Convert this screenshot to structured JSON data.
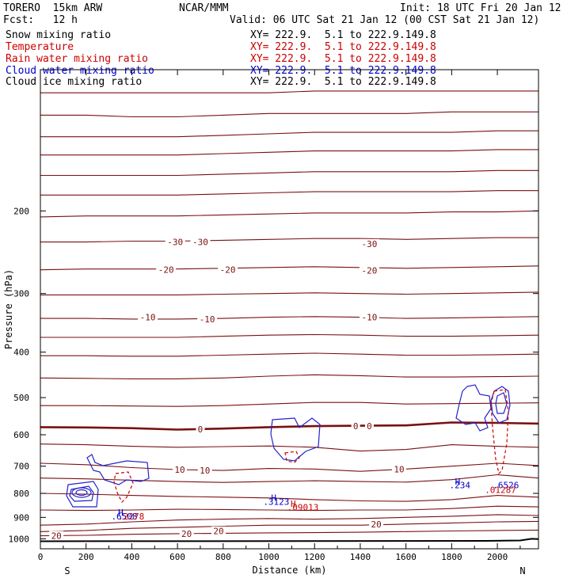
{
  "header": {
    "model": "TORERO  15km ARW",
    "center": "NCAR/MMM",
    "init": "Init: 18 UTC Fri 20 Jan 12",
    "fcst": "Fcst:   12 h",
    "valid": "Valid: 06 UTC Sat 21 Jan 12 (00 CST Sat 21 Jan 12)",
    "fields": [
      {
        "label": "Snow mixing ratio",
        "xy": "XY= 222.9.  5.1 to 222.9.149.8",
        "color": "#000000"
      },
      {
        "label": "Temperature",
        "xy": "XY= 222.9.  5.1 to 222.9.149.8",
        "color": "#cc0000"
      },
      {
        "label": "Rain water mixing ratio",
        "xy": "XY= 222.9.  5.1 to 222.9.149.8",
        "color": "#cc0000"
      },
      {
        "label": "Cloud water mixing ratio",
        "xy": "XY= 222.9.  5.1 to 222.9.149.8",
        "color": "#0000cc"
      },
      {
        "label": "Cloud ice mixing ratio",
        "xy": "XY= 222.9.  5.1 to 222.9.149.8",
        "color": "#000000"
      }
    ]
  },
  "chart_data": {
    "type": "contour-cross-section",
    "xlabel": "Distance (km)",
    "ylabel": "Pressure (hPa)",
    "xlim": [
      0,
      2180
    ],
    "ylim": [
      1050,
      100
    ],
    "x_ticks": [
      0,
      200,
      400,
      600,
      800,
      1000,
      1200,
      1400,
      1600,
      1800,
      2000
    ],
    "y_ticks": [
      200,
      300,
      400,
      500,
      600,
      700,
      800,
      900,
      1000
    ],
    "endpoint_left": "S",
    "endpoint_right": "N",
    "isotherm_profile_x": [
      0,
      200,
      400,
      600,
      800,
      1000,
      1200,
      1400,
      1600,
      1800,
      2000,
      2180
    ],
    "isotherms": [
      {
        "p": [
          112,
          112,
          112,
          112,
          112,
          112,
          111,
          111,
          111,
          111,
          111,
          111
        ]
      },
      {
        "p": [
          125,
          125,
          126,
          126,
          125,
          124,
          124,
          124,
          124,
          123,
          123,
          123
        ]
      },
      {
        "p": [
          139,
          139,
          139,
          139,
          138,
          137,
          136,
          136,
          136,
          136,
          135,
          135
        ]
      },
      {
        "p": [
          152,
          152,
          152,
          152,
          151,
          150,
          149,
          149,
          149,
          149,
          148,
          148
        ]
      },
      {
        "p": [
          168,
          168,
          168,
          168,
          167,
          166,
          165,
          165,
          165,
          165,
          164,
          164
        ]
      },
      {
        "p": [
          185,
          185,
          185,
          185,
          184,
          183,
          182,
          182,
          182,
          182,
          181,
          181
        ]
      },
      {
        "p": [
          206,
          205,
          205,
          205,
          204,
          203,
          202,
          202,
          202,
          201,
          201,
          200
        ]
      },
      {
        "p": [
          233,
          233,
          232,
          232,
          231,
          230,
          229,
          229,
          230,
          229,
          228,
          228
        ]
      },
      {
        "p": [
          267,
          266,
          266,
          266,
          265,
          264,
          263,
          264,
          265,
          264,
          263,
          262
        ]
      },
      {
        "p": [
          302,
          302,
          302,
          302,
          301,
          300,
          299,
          300,
          301,
          300,
          299,
          298
        ]
      },
      {
        "p": [
          339,
          339,
          340,
          340,
          339,
          337,
          336,
          337,
          339,
          338,
          337,
          336
        ]
      },
      {
        "p": [
          372,
          372,
          372,
          372,
          370,
          368,
          367,
          368,
          370,
          370,
          369,
          368
        ]
      },
      {
        "p": [
          407,
          407,
          408,
          408,
          406,
          404,
          402,
          404,
          406,
          406,
          405,
          404
        ]
      },
      {
        "p": [
          454,
          455,
          456,
          456,
          454,
          450,
          447,
          449,
          452,
          452,
          451,
          450
        ]
      },
      {
        "p": [
          520,
          520,
          521,
          522,
          520,
          516,
          512,
          512,
          516,
          515,
          514,
          513
        ]
      },
      {
        "p": [
          578,
          579,
          581,
          585,
          582,
          578,
          575,
          574,
          573,
          565,
          566,
          568
        ]
      },
      {
        "p": [
          628,
          630,
          635,
          638,
          636,
          634,
          638,
          650,
          645,
          630,
          635,
          638
        ]
      },
      {
        "p": [
          690,
          695,
          705,
          712,
          715,
          708,
          710,
          718,
          710,
          700,
          690,
          698
        ]
      },
      {
        "p": [
          742,
          745,
          750,
          755,
          758,
          755,
          752,
          755,
          757,
          748,
          730,
          742
        ]
      },
      {
        "p": [
          800,
          803,
          808,
          812,
          815,
          818,
          825,
          830,
          832,
          825,
          808,
          815
        ]
      },
      {
        "p": [
          868,
          870,
          868,
          865,
          866,
          868,
          870,
          868,
          868,
          862,
          852,
          855
        ]
      },
      {
        "p": [
          935,
          930,
          920,
          912,
          908,
          905,
          908,
          905,
          900,
          895,
          888,
          892
        ]
      },
      {
        "p": [
          965,
          960,
          950,
          945,
          940,
          935,
          935,
          935,
          930,
          925,
          920,
          918
        ]
      },
      {
        "p": [
          985,
          983,
          978,
          975,
          973,
          971,
          970,
          968,
          965,
          962,
          960,
          958
        ]
      }
    ],
    "freezing_index": 15,
    "temperature_labels": [
      {
        "x": 590,
        "p": 233,
        "text": "-30"
      },
      {
        "x": 700,
        "p": 233,
        "text": "-30"
      },
      {
        "x": 1440,
        "p": 235,
        "text": "-30"
      },
      {
        "x": 550,
        "p": 267,
        "text": "-20"
      },
      {
        "x": 820,
        "p": 267,
        "text": "-20"
      },
      {
        "x": 1440,
        "p": 268,
        "text": "-20"
      },
      {
        "x": 470,
        "p": 337,
        "text": "-10"
      },
      {
        "x": 730,
        "p": 340,
        "text": "-10"
      },
      {
        "x": 1440,
        "p": 337,
        "text": "-10"
      },
      {
        "x": 700,
        "p": 584,
        "text": "0"
      },
      {
        "x": 1380,
        "p": 575,
        "text": "0"
      },
      {
        "x": 1440,
        "p": 575,
        "text": "0"
      },
      {
        "x": 610,
        "p": 712,
        "text": "10"
      },
      {
        "x": 720,
        "p": 714,
        "text": "10"
      },
      {
        "x": 1570,
        "p": 710,
        "text": "10"
      },
      {
        "x": 70,
        "p": 985,
        "text": "20"
      },
      {
        "x": 640,
        "p": 975,
        "text": "20"
      },
      {
        "x": 780,
        "p": 963,
        "text": "20"
      },
      {
        "x": 1470,
        "p": 930,
        "text": "20"
      }
    ],
    "maxima_labels": [
      {
        "x": 340,
        "p": 892,
        "text": "H",
        "color": "#0000cc"
      },
      {
        "x": 310,
        "p": 910,
        "text": ".6508",
        "color": "#0000cc"
      },
      {
        "x": 1010,
        "p": 830,
        "text": "H",
        "color": "#0000cc"
      },
      {
        "x": 975,
        "p": 846,
        "text": ".3123",
        "color": "#0000cc"
      },
      {
        "x": 1815,
        "p": 766,
        "text": "H",
        "color": "#0000cc"
      },
      {
        "x": 1790,
        "p": 780,
        "text": ".234",
        "color": "#0000cc"
      },
      {
        "x": 1980,
        "p": 780,
        "text": ".6526",
        "color": "#0000cc"
      },
      {
        "x": 340,
        "p": 910,
        "text": ".2278",
        "color": "#cc0000"
      },
      {
        "x": 1095,
        "p": 855,
        "text": "H",
        "color": "#cc0000"
      },
      {
        "x": 1080,
        "p": 870,
        "text": ".09013",
        "color": "#cc0000"
      },
      {
        "x": 1945,
        "p": 798,
        "text": ".01287",
        "color": "#cc0000"
      }
    ]
  }
}
